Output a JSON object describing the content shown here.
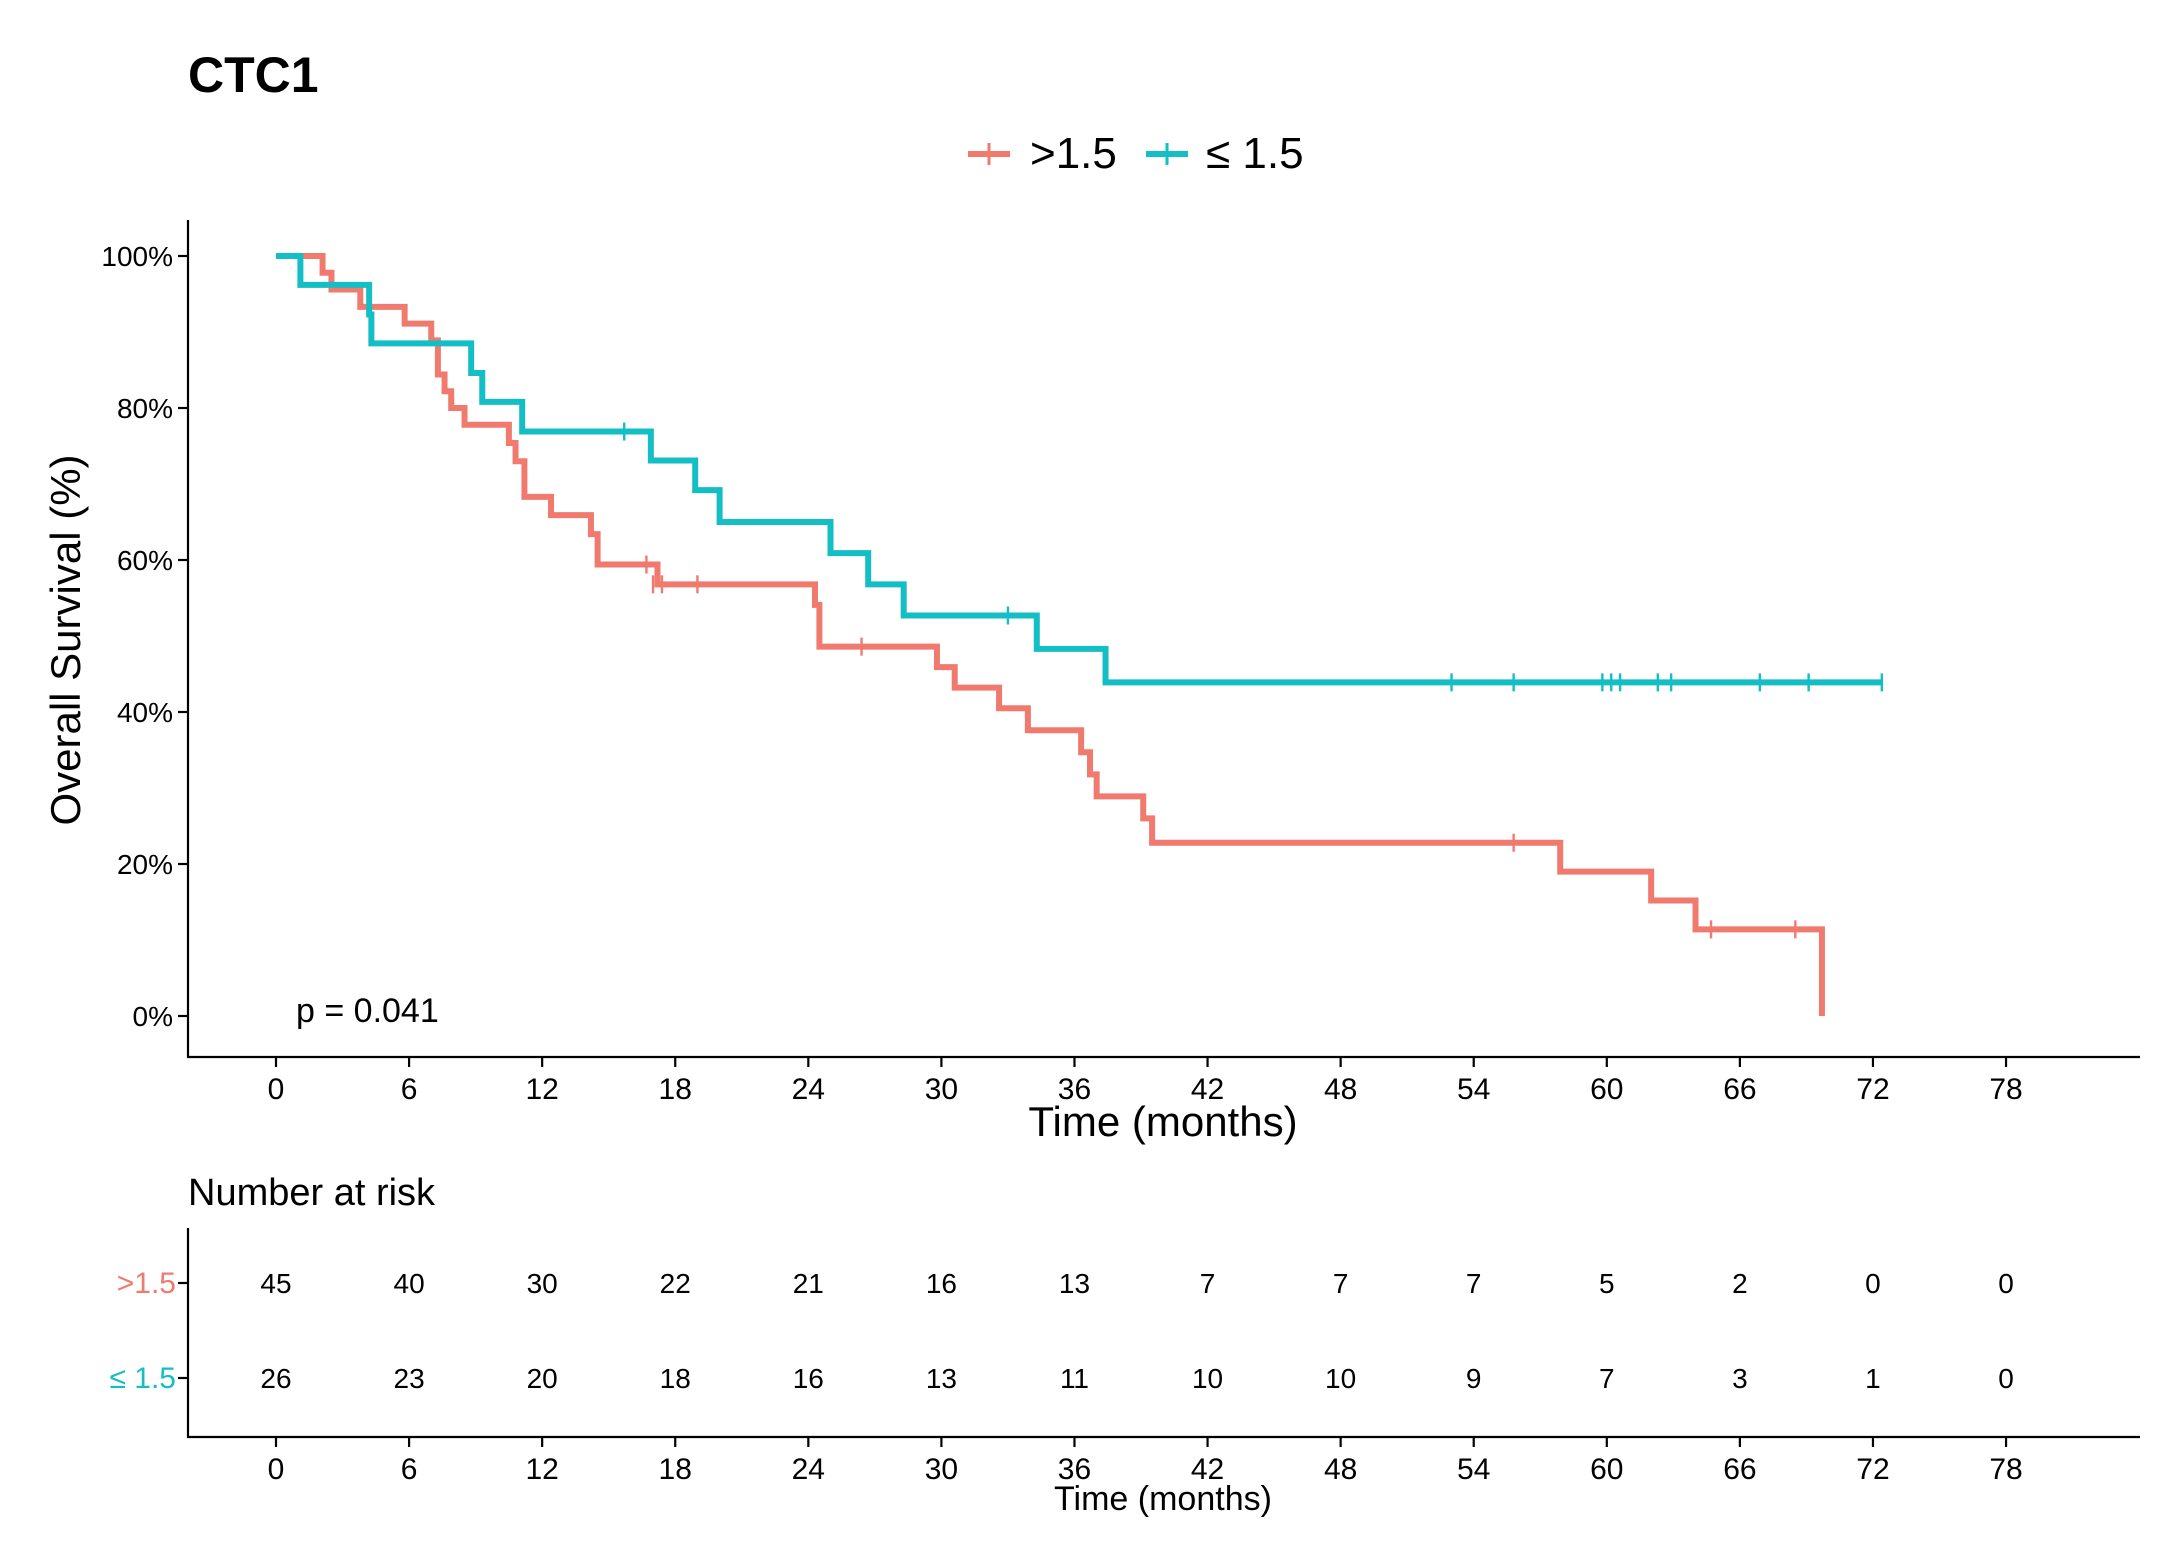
{
  "chart_data": {
    "type": "line",
    "subtype": "kaplan-meier",
    "title": "CTC1",
    "xlabel": "Time (months)",
    "ylabel": "Overall Survival (%)",
    "xlim": [
      -4,
      84
    ],
    "ylim": [
      0,
      100
    ],
    "x_ticks": [
      0,
      6,
      12,
      18,
      24,
      30,
      36,
      42,
      48,
      54,
      60,
      66,
      72,
      78
    ],
    "y_ticks": [
      0,
      20,
      40,
      60,
      80,
      100
    ],
    "y_tick_labels": [
      "0%",
      "20%",
      "40%",
      "60%",
      "80%",
      "100%"
    ],
    "legend_position": "top",
    "p_value_text": "p = 0.041",
    "series": [
      {
        "name": ">1.5",
        "color": "#F07A6E",
        "steps": [
          [
            0,
            100
          ],
          [
            2.1,
            97.8
          ],
          [
            2.5,
            95.6
          ],
          [
            3.8,
            93.3
          ],
          [
            5.8,
            91.1
          ],
          [
            7.0,
            88.9
          ],
          [
            7.3,
            84.4
          ],
          [
            7.6,
            82.2
          ],
          [
            7.9,
            80.0
          ],
          [
            8.5,
            77.8
          ],
          [
            10.5,
            75.4
          ],
          [
            10.8,
            73.0
          ],
          [
            11.2,
            68.3
          ],
          [
            12.4,
            65.9
          ],
          [
            14.2,
            63.4
          ],
          [
            14.5,
            59.4
          ],
          [
            17.2,
            56.8
          ],
          [
            24.3,
            54.1
          ],
          [
            24.5,
            48.6
          ],
          [
            29.8,
            45.9
          ],
          [
            30.6,
            43.2
          ],
          [
            32.6,
            40.5
          ],
          [
            33.9,
            37.6
          ],
          [
            36.3,
            34.7
          ],
          [
            36.7,
            31.8
          ],
          [
            37.0,
            28.9
          ],
          [
            39.1,
            26.0
          ],
          [
            39.5,
            22.8
          ],
          [
            57.9,
            19.0
          ],
          [
            62.0,
            15.2
          ],
          [
            64.0,
            11.4
          ],
          [
            69.7,
            0
          ]
        ],
        "end": 69.7,
        "censored": [
          [
            16.7,
            59.4
          ],
          [
            17.0,
            56.8
          ],
          [
            17.4,
            56.8
          ],
          [
            19.0,
            56.8
          ],
          [
            26.4,
            48.6
          ],
          [
            55.8,
            22.8
          ],
          [
            64.7,
            11.4
          ],
          [
            68.5,
            11.4
          ]
        ],
        "risk": [
          45,
          40,
          30,
          22,
          21,
          16,
          13,
          7,
          7,
          7,
          5,
          2,
          0,
          0
        ]
      },
      {
        "name": "≤ 1.5",
        "color": "#13BEC5",
        "steps": [
          [
            0,
            100
          ],
          [
            1.1,
            96.2
          ],
          [
            4.2,
            92.3
          ],
          [
            4.3,
            88.5
          ],
          [
            8.8,
            84.6
          ],
          [
            9.3,
            80.8
          ],
          [
            11.1,
            76.9
          ],
          [
            16.9,
            73.1
          ],
          [
            18.9,
            69.2
          ],
          [
            20.0,
            65.0
          ],
          [
            25.0,
            60.9
          ],
          [
            26.7,
            56.8
          ],
          [
            28.3,
            52.7
          ],
          [
            34.3,
            48.3
          ],
          [
            37.4,
            43.9
          ]
        ],
        "end": 72.4,
        "censored": [
          [
            15.7,
            76.9
          ],
          [
            33.0,
            52.7
          ],
          [
            53.0,
            43.9
          ],
          [
            55.8,
            43.9
          ],
          [
            59.8,
            43.9
          ],
          [
            60.2,
            43.9
          ],
          [
            60.6,
            43.9
          ],
          [
            62.3,
            43.9
          ],
          [
            62.9,
            43.9
          ],
          [
            66.9,
            43.9
          ],
          [
            69.1,
            43.9
          ],
          [
            72.4,
            43.9
          ]
        ],
        "risk": [
          26,
          23,
          20,
          18,
          16,
          13,
          11,
          10,
          10,
          9,
          7,
          3,
          1,
          0
        ]
      }
    ],
    "risk_table": {
      "title": "Number at risk",
      "xlabel": "Time (months)",
      "rows": [
        ">1.5",
        "≤ 1.5"
      ]
    }
  }
}
